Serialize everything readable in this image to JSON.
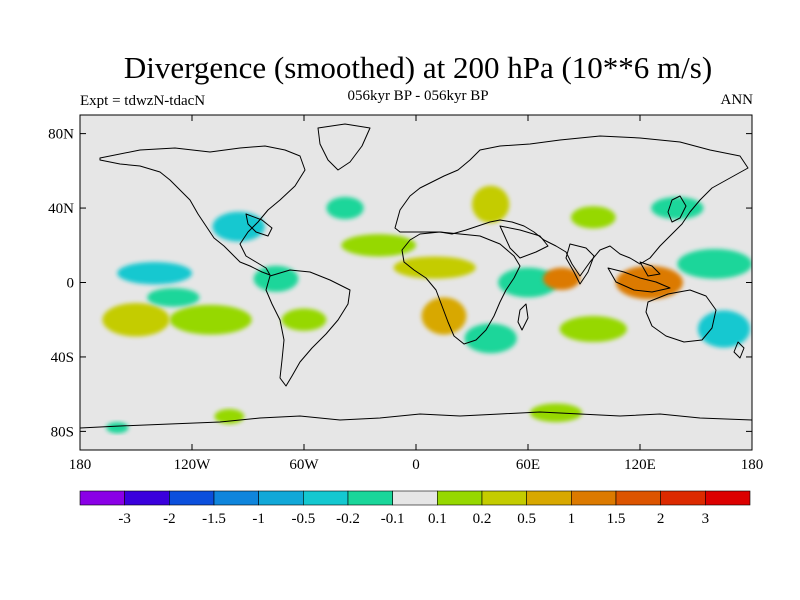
{
  "title": "Divergence (smoothed) at 200 hPa (10**6 m/s)",
  "subtitle": "056kyr BP - 056kyr BP",
  "left_label": "Expt = tdwzN-tdacN",
  "right_label": "ANN",
  "map": {
    "projection": "cylindrical equidistant",
    "lon_range": [
      -180,
      180
    ],
    "lat_range": [
      -90,
      90
    ],
    "background": "#e6e6e6",
    "x_ticks": [
      {
        "value": -180,
        "label": "180"
      },
      {
        "value": -120,
        "label": "120W"
      },
      {
        "value": -60,
        "label": "60W"
      },
      {
        "value": 0,
        "label": "0"
      },
      {
        "value": 60,
        "label": "60E"
      },
      {
        "value": 120,
        "label": "120E"
      },
      {
        "value": 180,
        "label": "180"
      }
    ],
    "y_ticks": [
      {
        "value": 80,
        "label": "80N"
      },
      {
        "value": 40,
        "label": "40N"
      },
      {
        "value": 0,
        "label": "0"
      },
      {
        "value": -40,
        "label": "40S"
      },
      {
        "value": -80,
        "label": "80S"
      }
    ],
    "features": [
      {
        "lon": -160,
        "lat": 20,
        "rx": 18,
        "ry": 7,
        "level": 7
      },
      {
        "lon": -140,
        "lat": 5,
        "rx": 20,
        "ry": 6,
        "level": 5
      },
      {
        "lon": -95,
        "lat": 30,
        "rx": 14,
        "ry": 8,
        "level": 5
      },
      {
        "lon": -110,
        "lat": -20,
        "rx": 22,
        "ry": 8,
        "level": 8
      },
      {
        "lon": -150,
        "lat": -20,
        "rx": 18,
        "ry": 9,
        "level": 9
      },
      {
        "lon": -130,
        "lat": -8,
        "rx": 14,
        "ry": 5,
        "level": 6
      },
      {
        "lon": -75,
        "lat": 2,
        "rx": 12,
        "ry": 7,
        "level": 6
      },
      {
        "lon": -60,
        "lat": -20,
        "rx": 12,
        "ry": 6,
        "level": 8
      },
      {
        "lon": -38,
        "lat": 40,
        "rx": 10,
        "ry": 6,
        "level": 6
      },
      {
        "lon": -20,
        "lat": 20,
        "rx": 20,
        "ry": 6,
        "level": 8
      },
      {
        "lon": 10,
        "lat": 8,
        "rx": 22,
        "ry": 6,
        "level": 9
      },
      {
        "lon": 40,
        "lat": 42,
        "rx": 10,
        "ry": 10,
        "level": 9
      },
      {
        "lon": 15,
        "lat": -18,
        "rx": 12,
        "ry": 10,
        "level": 10
      },
      {
        "lon": 60,
        "lat": 0,
        "rx": 16,
        "ry": 8,
        "level": 6
      },
      {
        "lon": 78,
        "lat": 2,
        "rx": 10,
        "ry": 6,
        "level": 11
      },
      {
        "lon": 125,
        "lat": 0,
        "rx": 18,
        "ry": 9,
        "level": 11
      },
      {
        "lon": 95,
        "lat": 35,
        "rx": 12,
        "ry": 6,
        "level": 8
      },
      {
        "lon": 140,
        "lat": 40,
        "rx": 14,
        "ry": 6,
        "level": 6
      },
      {
        "lon": 160,
        "lat": 10,
        "rx": 20,
        "ry": 8,
        "level": 6
      },
      {
        "lon": 165,
        "lat": -25,
        "rx": 14,
        "ry": 10,
        "level": 5
      },
      {
        "lon": 95,
        "lat": -25,
        "rx": 18,
        "ry": 7,
        "level": 8
      },
      {
        "lon": 40,
        "lat": -30,
        "rx": 14,
        "ry": 8,
        "level": 6
      },
      {
        "lon": 75,
        "lat": -70,
        "rx": 14,
        "ry": 5,
        "level": 8
      },
      {
        "lon": -100,
        "lat": -72,
        "rx": 8,
        "ry": 4,
        "level": 8
      },
      {
        "lon": -160,
        "lat": -78,
        "rx": 6,
        "ry": 3,
        "level": 6
      }
    ]
  },
  "colorbar": {
    "colors": [
      "#8a00e6",
      "#3a00dc",
      "#0b4fdc",
      "#0f85dc",
      "#12a8d8",
      "#14c8d0",
      "#1ad69a",
      "#e6e6e6",
      "#96d800",
      "#c4cc00",
      "#d8a800",
      "#dc7a00",
      "#dc5400",
      "#dc2a00",
      "#dc0000"
    ],
    "labels": [
      "-3",
      "-2",
      "-1.5",
      "-1",
      "-0.5",
      "-0.2",
      "-0.1",
      "0.1",
      "0.2",
      "0.5",
      "1",
      "1.5",
      "2",
      "3"
    ]
  }
}
